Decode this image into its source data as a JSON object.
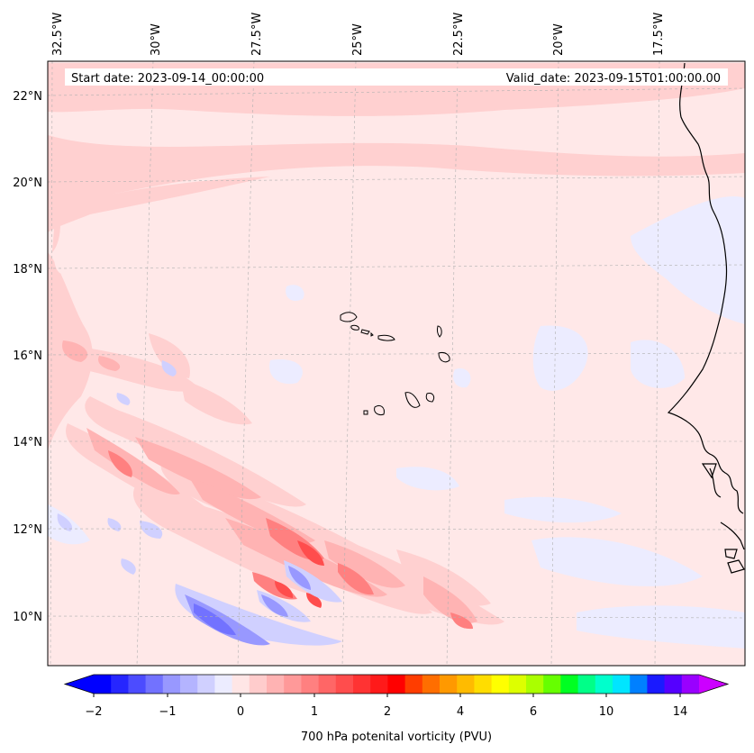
{
  "header": {
    "start_date": "Start date: 2023-09-14_00:00:00",
    "valid_date": "Valid_date: 2023-09-15T01:00:00.00"
  },
  "axes": {
    "lon_ticks": [
      "32.5°W",
      "30°W",
      "27.5°W",
      "25°W",
      "22.5°W",
      "20°W",
      "17.5°W"
    ],
    "lat_ticks": [
      "22°N",
      "20°N",
      "18°N",
      "16°N",
      "14°N",
      "12°N",
      "10°N"
    ]
  },
  "colorbar": {
    "label": "700 hPa potenital vorticity (PVU)",
    "ticks": [
      "−2",
      "−1",
      "0",
      "1",
      "2",
      "4",
      "6",
      "10",
      "14"
    ],
    "colors": [
      "#0000ff",
      "#2626ff",
      "#4c4cff",
      "#7272ff",
      "#9898ff",
      "#b4b4ff",
      "#d0d0ff",
      "#ececff",
      "#ffe6e6",
      "#ffcccc",
      "#ffb3b3",
      "#ff9999",
      "#ff8080",
      "#ff6666",
      "#ff4d4d",
      "#ff3333",
      "#ff1a1a",
      "#ff0000",
      "#ff3d00",
      "#ff6e00",
      "#ff9900",
      "#ffbb00",
      "#ffdd00",
      "#ffff00",
      "#ddff00",
      "#aaff00",
      "#66ff00",
      "#00ff22",
      "#00ff88",
      "#00ffcc",
      "#00e5ff",
      "#0080ff",
      "#1a1aff",
      "#5500ff",
      "#9900ff"
    ],
    "under_color": "#0000ff",
    "over_color": "#cc00ff"
  },
  "map": {
    "background_color": "#ffe8e8",
    "low_pv_color": "#ececff",
    "coast_color": "#000000"
  }
}
